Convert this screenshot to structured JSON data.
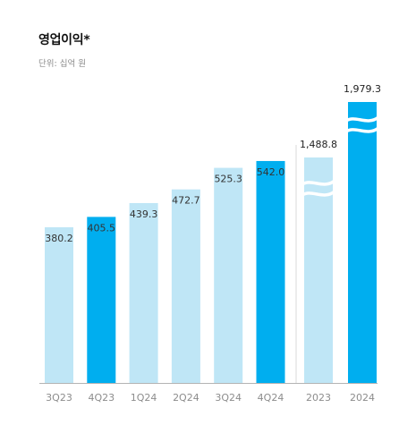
{
  "chart_data": [
    {
      "type": "bar",
      "title": "영업이익*",
      "subtitle": "단위: 십억 원",
      "categories": [
        "3Q23",
        "4Q23",
        "1Q24",
        "2Q24",
        "3Q24",
        "4Q24"
      ],
      "values": [
        380.2,
        405.5,
        439.3,
        472.7,
        525.3,
        542.0
      ],
      "value_labels": [
        "380.2",
        "405.5",
        "439.3",
        "472.7",
        "525.3",
        "542.0"
      ],
      "highlight": [
        "4Q23",
        "4Q24"
      ],
      "ylim": [
        0,
        600
      ]
    },
    {
      "type": "bar",
      "categories": [
        "2023",
        "2024"
      ],
      "values": [
        1488.8,
        1979.3
      ],
      "value_labels": [
        "1,488.8",
        "1,979.3"
      ],
      "highlight": [
        "2024"
      ],
      "broken_axis": true
    }
  ],
  "colors": {
    "light": "#bfe6f6",
    "highlight": "#00aeef",
    "tick": "#8c8c8c",
    "label": "#333333",
    "baseline": "#b3b3b3"
  }
}
